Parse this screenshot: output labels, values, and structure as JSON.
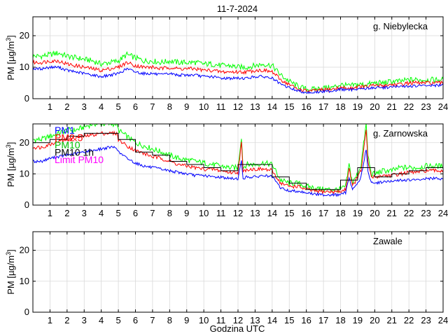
{
  "title": "11-7-2024",
  "xlabel": "Godzina UTC",
  "chart_data": [
    {
      "type": "line",
      "station": "g. Niebylecka",
      "ylabel_main": "PM [",
      "ylabel_unit": "µg/m",
      "ylabel_sup": "3",
      "ylabel_close": "]",
      "xlim": [
        0,
        24
      ],
      "ylim": [
        0,
        26
      ],
      "x_ticks": [
        "1",
        "2",
        "3",
        "4",
        "5",
        "6",
        "7",
        "8",
        "9",
        "10",
        "11",
        "12",
        "13",
        "14",
        "15",
        "16",
        "17",
        "18",
        "19",
        "20",
        "21",
        "22",
        "23",
        "24"
      ],
      "y_ticks": [
        "0",
        "10",
        "20"
      ],
      "legend": [],
      "series": [
        {
          "name": "PM10",
          "color": "#00ff00",
          "x": [
            0,
            0.5,
            1,
            1.5,
            2,
            2.5,
            3,
            3.5,
            4,
            4.5,
            5,
            5.5,
            6,
            6.5,
            7,
            7.5,
            8,
            8.5,
            9,
            9.5,
            10,
            10.5,
            11,
            11.5,
            12,
            12.5,
            13,
            13.5,
            14,
            14.5,
            15,
            15.5,
            16,
            16.5,
            17,
            17.5,
            18,
            18.5,
            19,
            19.5,
            20,
            20.5,
            21,
            21.5,
            22,
            22.5,
            23,
            23.5,
            24
          ],
          "values": [
            13.5,
            13.5,
            14,
            14.5,
            13.5,
            13,
            12.5,
            12,
            11,
            11.5,
            12,
            14,
            13,
            12,
            12,
            11.5,
            12,
            11.5,
            11.5,
            11.5,
            11,
            11,
            10.5,
            10.5,
            10,
            10,
            10.5,
            11,
            10.5,
            7.5,
            5.5,
            4,
            3,
            3,
            3.5,
            3.5,
            4.5,
            4,
            4.5,
            4.5,
            5,
            5,
            5.5,
            5.5,
            6,
            6,
            6,
            6,
            6
          ]
        },
        {
          "name": "PM2.5",
          "color": "#ff0000",
          "x": [
            0,
            0.5,
            1,
            1.5,
            2,
            2.5,
            3,
            3.5,
            4,
            4.5,
            5,
            5.5,
            6,
            6.5,
            7,
            7.5,
            8,
            8.5,
            9,
            9.5,
            10,
            10.5,
            11,
            11.5,
            12,
            12.5,
            13,
            13.5,
            14,
            14.5,
            15,
            15.5,
            16,
            16.5,
            17,
            17.5,
            18,
            18.5,
            19,
            19.5,
            20,
            20.5,
            21,
            21.5,
            22,
            22.5,
            23,
            23.5,
            24
          ],
          "values": [
            11.5,
            11.5,
            12,
            12,
            11,
            10.5,
            10,
            9.5,
            9,
            9.5,
            10,
            11.5,
            10.5,
            10,
            10,
            9.5,
            10,
            9.5,
            9.5,
            9.5,
            9,
            9,
            8.5,
            8.5,
            8.5,
            8.5,
            9,
            9,
            8.5,
            6,
            4.5,
            3,
            2.5,
            2.5,
            2.8,
            3,
            3.5,
            3.2,
            3.8,
            3.8,
            4.2,
            4.2,
            4.5,
            4.5,
            5,
            5,
            5,
            5,
            5
          ]
        },
        {
          "name": "PM1",
          "color": "#0000ff",
          "x": [
            0,
            0.5,
            1,
            1.5,
            2,
            2.5,
            3,
            3.5,
            4,
            4.5,
            5,
            5.5,
            6,
            6.5,
            7,
            7.5,
            8,
            8.5,
            9,
            9.5,
            10,
            10.5,
            11,
            11.5,
            12,
            12.5,
            13,
            13.5,
            14,
            14.5,
            15,
            15.5,
            16,
            16.5,
            17,
            17.5,
            18,
            18.5,
            19,
            19.5,
            20,
            20.5,
            21,
            21.5,
            22,
            22.5,
            23,
            23.5,
            24
          ],
          "values": [
            9.5,
            9.5,
            10,
            10,
            9,
            8.5,
            8,
            7.5,
            7,
            7.5,
            8,
            9.5,
            8.5,
            8,
            8,
            7.5,
            8,
            7.5,
            7.5,
            7.5,
            7,
            7,
            6.5,
            6.5,
            6.5,
            6.5,
            7,
            7,
            6.5,
            4.5,
            3.5,
            2.5,
            2,
            2,
            2.3,
            2.5,
            3,
            2.7,
            3.2,
            3.2,
            3.5,
            3.5,
            3.8,
            3.8,
            4,
            4,
            4.2,
            4.2,
            4.2
          ]
        }
      ]
    },
    {
      "type": "line",
      "station": "g. Zarnowska",
      "ylabel_main": "PM [",
      "ylabel_unit": "µg/m",
      "ylabel_sup": "3",
      "ylabel_close": "]",
      "xlim": [
        0,
        24
      ],
      "ylim": [
        0,
        26
      ],
      "x_ticks": [
        "1",
        "2",
        "3",
        "4",
        "5",
        "6",
        "7",
        "8",
        "9",
        "10",
        "11",
        "12",
        "13",
        "14",
        "15",
        "16",
        "17",
        "18",
        "19",
        "20",
        "21",
        "22",
        "23",
        "24"
      ],
      "y_ticks": [
        "0",
        "10",
        "20"
      ],
      "legend": [
        {
          "label": "PM1",
          "color": "#0000ff"
        },
        {
          "label": "PM2.5",
          "color": "#ff0000"
        },
        {
          "label": "PM10",
          "color": "#00c000"
        },
        {
          "label": "PM10 1h",
          "color": "#000000"
        },
        {
          "label": "Limit PM10",
          "color": "#ff00ff"
        }
      ],
      "series": [
        {
          "name": "PM10",
          "color": "#00ff00",
          "x": [
            0,
            0.5,
            1,
            1.5,
            2,
            2.5,
            3,
            3.5,
            4,
            4.5,
            4.9,
            5,
            5.5,
            6,
            6.5,
            7,
            7.5,
            8,
            8.5,
            9,
            9.5,
            10,
            10.5,
            11,
            11.5,
            12,
            12.2,
            12.3,
            12.5,
            13,
            13.5,
            14,
            14.5,
            15,
            15.5,
            16,
            16.5,
            17,
            17.5,
            18,
            18.3,
            18.5,
            18.7,
            19,
            19.2,
            19.5,
            19.6,
            19.8,
            20,
            20.5,
            21,
            21.5,
            22,
            22.5,
            23,
            23.5,
            24
          ],
          "values": [
            21,
            21,
            22,
            23,
            24,
            24,
            25,
            26,
            26,
            26,
            26,
            24,
            22,
            20,
            19,
            18,
            17,
            16,
            15,
            14.5,
            14,
            13.5,
            13,
            12.5,
            12,
            12,
            22,
            12,
            13,
            13,
            13.5,
            13,
            8,
            7,
            7,
            6,
            5.5,
            5,
            5,
            5,
            6,
            13,
            7,
            10,
            13,
            26,
            16,
            10,
            10,
            11,
            11,
            12,
            12,
            12,
            12.5,
            12.5,
            12.5
          ]
        },
        {
          "name": "PM2.5",
          "color": "#ff0000",
          "x": [
            0,
            0.5,
            1,
            1.5,
            2,
            2.5,
            3,
            3.5,
            4,
            4.5,
            4.9,
            5,
            5.5,
            6,
            6.5,
            7,
            7.5,
            8,
            8.5,
            9,
            9.5,
            10,
            10.5,
            11,
            11.5,
            12,
            12.2,
            12.3,
            12.5,
            13,
            13.5,
            14,
            14.5,
            15,
            15.5,
            16,
            16.5,
            17,
            17.5,
            18,
            18.3,
            18.5,
            18.7,
            19,
            19.2,
            19.5,
            19.6,
            19.8,
            20,
            20.5,
            21,
            21.5,
            22,
            22.5,
            23,
            23.5,
            24
          ],
          "values": [
            18.5,
            18.5,
            19.5,
            20.5,
            21,
            21.5,
            22,
            22.5,
            23,
            23,
            23,
            21,
            19,
            17.5,
            16.5,
            15.5,
            15,
            14,
            13,
            12.5,
            12,
            11.5,
            11.5,
            11,
            10.5,
            10.5,
            20,
            10.5,
            11.5,
            11.5,
            11.5,
            11,
            7,
            6,
            6,
            5,
            4.5,
            4.3,
            4.3,
            4.3,
            5,
            12,
            6,
            9,
            11,
            24,
            14,
            9,
            9,
            9.5,
            9.5,
            10,
            10.5,
            10.5,
            11,
            11,
            11
          ]
        },
        {
          "name": "PM1",
          "color": "#0000ff",
          "x": [
            0,
            0.5,
            1,
            1.5,
            2,
            2.5,
            3,
            3.5,
            4,
            4.5,
            4.9,
            5,
            5.5,
            6,
            6.5,
            7,
            7.5,
            8,
            8.5,
            9,
            9.5,
            10,
            10.5,
            11,
            11.5,
            12,
            12.2,
            12.3,
            12.5,
            13,
            13.5,
            14,
            14.5,
            15,
            15.5,
            16,
            16.5,
            17,
            17.5,
            18,
            18.3,
            18.5,
            18.7,
            19,
            19.2,
            19.5,
            19.6,
            19.8,
            20,
            20.5,
            21,
            21.5,
            22,
            22.5,
            23,
            23.5,
            24
          ],
          "values": [
            14,
            14,
            15,
            15.5,
            16,
            16.5,
            17,
            17.5,
            18,
            18.5,
            18.5,
            17,
            15,
            13.5,
            12.5,
            12,
            11.5,
            11,
            10.5,
            10,
            9.5,
            9.5,
            9,
            9,
            8.5,
            8.5,
            14,
            8.5,
            9,
            9,
            9.5,
            9,
            5.5,
            4.5,
            4.5,
            4,
            3.5,
            3.3,
            3.3,
            3.3,
            4,
            9,
            5,
            7,
            9,
            18,
            11,
            7,
            7,
            7.5,
            7.5,
            8,
            8,
            8,
            8.5,
            8.5,
            8.5
          ]
        },
        {
          "name": "PM10 1h",
          "color": "#000000",
          "step": true,
          "x": [
            0,
            1,
            2,
            3,
            4,
            5,
            6,
            7,
            8,
            9,
            10,
            11,
            12,
            13,
            14,
            15,
            16,
            17,
            18,
            19,
            20,
            21,
            22,
            23,
            24
          ],
          "values": [
            20,
            21,
            22,
            23,
            23,
            21,
            17,
            16,
            14,
            13,
            12,
            11,
            13,
            13,
            9,
            7,
            5,
            5,
            8,
            12,
            9,
            10,
            11,
            12,
            12
          ]
        }
      ]
    },
    {
      "type": "line",
      "station": "Zawale",
      "ylabel_main": "PM [",
      "ylabel_unit": "µg/m",
      "ylabel_sup": "3",
      "ylabel_close": "]",
      "xlim": [
        0,
        24
      ],
      "ylim": [
        0,
        26
      ],
      "x_ticks": [
        "1",
        "2",
        "3",
        "4",
        "5",
        "6",
        "7",
        "8",
        "9",
        "10",
        "11",
        "12",
        "13",
        "14",
        "15",
        "16",
        "17",
        "18",
        "19",
        "20",
        "21",
        "22",
        "23",
        "24"
      ],
      "y_ticks": [
        "0",
        "10",
        "20"
      ],
      "legend": [],
      "series": []
    }
  ]
}
